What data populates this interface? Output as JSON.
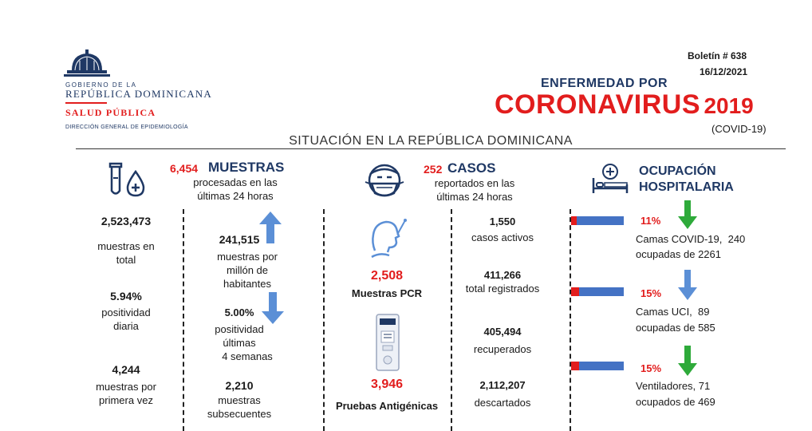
{
  "header": {
    "gov_line1": "GOBIERNO DE LA",
    "gov_line2": "REPÚBLICA DOMINICANA",
    "ministry": "SALUD PÚBLICA",
    "department": "DIRECCIÓN GENERAL DE EPIDEMIOLOGÍA",
    "bulletin": "Boletín # 638",
    "date": "16/12/2021",
    "title_top": "ENFERMEDAD POR",
    "title_main": "CORONAVIRUS",
    "title_year": "2019",
    "title_sub": "(COVID-19)",
    "situation": "SITUACIÓN EN LA REPÚBLICA DOMINICANA"
  },
  "muestras": {
    "count": "6,454",
    "heading": "MUESTRAS",
    "sub1": "procesadas en las",
    "sub2": "últimas 24 horas",
    "total_value": "2,523,473",
    "total_label1": "muestras en",
    "total_label2": "total",
    "per_million_value": "241,515",
    "per_million_label1": "muestras por",
    "per_million_label2": "millón de",
    "per_million_label3": "habitantes",
    "daily_pos_value": "5.94%",
    "daily_pos_label1": "positividad",
    "daily_pos_label2": "diaria",
    "weeks_pos_value": "5.00%",
    "weeks_pos_label1": "positividad",
    "weeks_pos_label2": "últimas",
    "weeks_pos_label3": "4 semanas",
    "first_value": "4,244",
    "first_label1": "muestras por",
    "first_label2": "primera vez",
    "subsequent_value": "2,210",
    "subsequent_label1": "muestras",
    "subsequent_label2": "subsecuentes"
  },
  "casos": {
    "count": "252",
    "heading": "CASOS",
    "sub1": "reportados en las",
    "sub2": "últimas 24 horas",
    "pcr_value": "2,508",
    "pcr_label": "Muestras PCR",
    "antigen_value": "3,946",
    "antigen_label": "Pruebas Antigénicas",
    "active_value": "1,550",
    "active_label": "casos activos",
    "registered_value": "411,266",
    "registered_label": "total registrados",
    "recovered_value": "405,494",
    "recovered_label": "recuperados",
    "discarded_value": "2,112,207",
    "discarded_label": "descartados"
  },
  "ocupacion": {
    "heading1": "OCUPACIÓN",
    "heading2": "HOSPITALARIA",
    "items": [
      {
        "percent": "11%",
        "fill": 0.11,
        "line1": "Camas COVID-19,  240",
        "line2": "ocupadas de 2261",
        "trend": "down-green"
      },
      {
        "percent": "15%",
        "fill": 0.15,
        "line1": "Camas UCI,  89",
        "line2": "ocupadas de 585",
        "trend": "down-blue"
      },
      {
        "percent": "15%",
        "fill": 0.15,
        "line1": "Ventiladores, 71",
        "line2": "ocupados de 469",
        "trend": "down-green"
      }
    ]
  },
  "colors": {
    "navy": "#1f3864",
    "red": "#e21d1d",
    "bar_blue": "#4472c4",
    "arrow_blue": "#5b8fd6",
    "arrow_green": "#2eaa3a"
  }
}
